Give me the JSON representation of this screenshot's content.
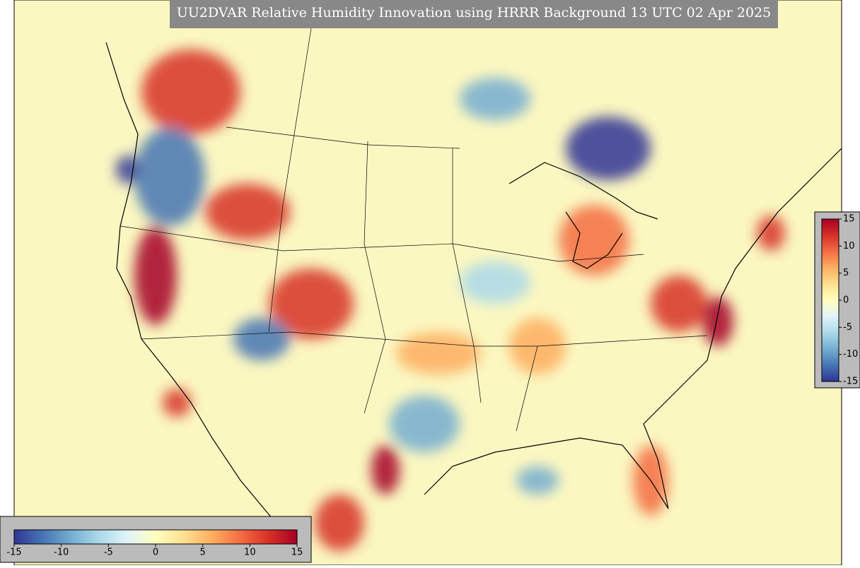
{
  "title": "UU2DVAR Relative Humidity Innovation using HRRR Background 13 UTC 02 Apr 2025",
  "colormap": [
    "#313695",
    "#4575b4",
    "#74add1",
    "#abd9e9",
    "#e0f3f8",
    "#ffffbf",
    "#fee090",
    "#fdae61",
    "#f46d43",
    "#d73027",
    "#a50026"
  ],
  "colorbars": [
    {
      "orientation": "horizontal",
      "lim": [
        -15,
        15
      ],
      "ticks": [
        -15,
        -10,
        -5,
        0,
        5,
        10,
        15
      ]
    },
    {
      "orientation": "vertical",
      "lim": [
        -15,
        15
      ],
      "ticks": [
        -15,
        -10,
        -5,
        0,
        5,
        10,
        15
      ]
    }
  ]
}
